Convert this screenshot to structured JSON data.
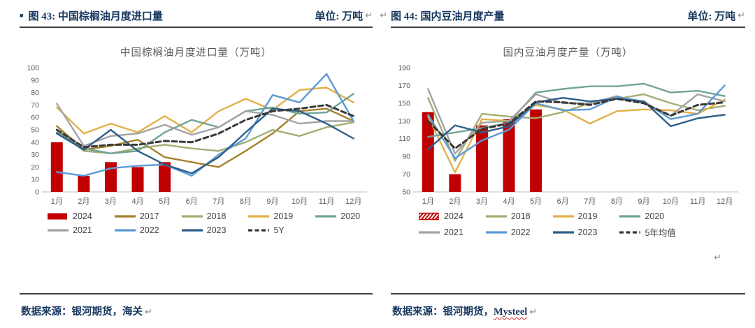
{
  "panels": [
    {
      "bullet": "■",
      "heading": "图 43: 中国棕榈油月度进口量",
      "unit": "单位: 万吨",
      "ret": "↵",
      "source": "数据来源：银河期货，海关"
    },
    {
      "heading": "图 44: 国内豆油月度产量",
      "unit": "单位: 万吨",
      "ret": "↵",
      "source_prefix": "数据来源：银河期货，",
      "source_spellcheck": "Mysteel"
    }
  ],
  "colors": {
    "bar_red": "#C00000",
    "header_navy": "#17375E",
    "title_gray": "#595959",
    "axis_line": "#C9C9C9",
    "legend_text": "#404040"
  },
  "chart_data": [
    {
      "type": "bar+line",
      "title": "中国棕榈油月度进口量（万吨）",
      "categories": [
        "1月",
        "2月",
        "3月",
        "4月",
        "5月",
        "6月",
        "7月",
        "8月",
        "9月",
        "10月",
        "11月",
        "12月"
      ],
      "ylim": [
        0,
        100
      ],
      "ytick_step": 10,
      "grid": false,
      "legend_position": "bottom",
      "bar_series": {
        "name": "2024",
        "color": "#C00000",
        "values": [
          40,
          13,
          24,
          20,
          24
        ]
      },
      "series": [
        {
          "name": "2017",
          "color": "#A6802C",
          "values": [
            53,
            34,
            37,
            42,
            28,
            24,
            20,
            33,
            47,
            65,
            67,
            57
          ]
        },
        {
          "name": "2018",
          "color": "#A3AD74",
          "values": [
            50,
            33,
            31,
            35,
            38,
            35,
            33,
            40,
            50,
            45,
            52,
            56
          ]
        },
        {
          "name": "2019",
          "color": "#E3B04B",
          "values": [
            68,
            47,
            55,
            48,
            61,
            48,
            65,
            75,
            66,
            82,
            84,
            72
          ]
        },
        {
          "name": "2020",
          "color": "#70A494",
          "values": [
            48,
            35,
            31,
            33,
            48,
            58,
            52,
            65,
            68,
            63,
            64,
            79
          ]
        },
        {
          "name": "2021",
          "color": "#A3A3A3",
          "values": [
            71,
            37,
            45,
            47,
            54,
            46,
            52,
            65,
            62,
            55,
            57,
            57
          ]
        },
        {
          "name": "2022",
          "color": "#5B9BD5",
          "values": [
            16,
            13,
            19,
            21,
            22,
            13,
            30,
            43,
            78,
            72,
            95,
            57
          ]
        },
        {
          "name": "2023",
          "color": "#2E5E8A",
          "values": [
            47,
            34,
            50,
            33,
            22,
            15,
            28,
            48,
            67,
            65,
            55,
            43
          ]
        },
        {
          "name": "5Y",
          "color": "#3B3838",
          "dashed": true,
          "values": [
            50,
            36,
            38,
            38,
            41,
            40,
            47,
            58,
            65,
            67,
            70,
            61
          ]
        }
      ],
      "legend_rows": [
        [
          "2024",
          "2017",
          "2018",
          "2019",
          "2020"
        ],
        [
          "2021",
          "2022",
          "2023",
          "5Y"
        ]
      ],
      "bar_legend_hatched": false
    },
    {
      "type": "bar+line",
      "title": "国内豆油月度产量（万吨）",
      "categories": [
        "1月",
        "2月",
        "3月",
        "4月",
        "5月",
        "6月",
        "7月",
        "8月",
        "9月",
        "10月",
        "11月",
        "12月"
      ],
      "ylim": [
        50,
        190
      ],
      "ytick_step": 20,
      "grid": false,
      "legend_position": "bottom",
      "bar_series": {
        "name": "2024",
        "color": "#C00000",
        "values": [
          140,
          70,
          125,
          132,
          143
        ]
      },
      "series": [
        {
          "name": "2018",
          "color": "#A3AD74",
          "values": [
            156,
            85,
            138,
            135,
            133,
            140,
            150,
            155,
            160,
            150,
            142,
            147
          ]
        },
        {
          "name": "2019",
          "color": "#E3B04B",
          "values": [
            135,
            72,
            132,
            130,
            148,
            143,
            127,
            141,
            143,
            142,
            138,
            154
          ]
        },
        {
          "name": "2020",
          "color": "#70A494",
          "values": [
            112,
            117,
            122,
            128,
            162,
            166,
            169,
            169,
            172,
            162,
            164,
            158
          ]
        },
        {
          "name": "2021",
          "color": "#A3A3A3",
          "values": [
            166,
            93,
            128,
            130,
            160,
            150,
            150,
            158,
            150,
            136,
            160,
            152
          ]
        },
        {
          "name": "2022",
          "color": "#5B9BD5",
          "values": [
            137,
            88,
            108,
            120,
            150,
            142,
            143,
            157,
            152,
            132,
            138,
            170
          ]
        },
        {
          "name": "2023",
          "color": "#2E5E8A",
          "values": [
            98,
            125,
            117,
            124,
            151,
            156,
            152,
            155,
            152,
            124,
            133,
            137
          ]
        },
        {
          "name": "5年均值",
          "color": "#3B3838",
          "dashed": true,
          "values": [
            130,
            99,
            121,
            127,
            152,
            151,
            148,
            155,
            150,
            136,
            148,
            151
          ]
        }
      ],
      "legend_rows": [
        [
          "2024",
          "2018",
          "2019",
          "2020"
        ],
        [
          "2021",
          "2022",
          "2023",
          "5年均值"
        ]
      ],
      "bar_legend_hatched": true
    }
  ]
}
